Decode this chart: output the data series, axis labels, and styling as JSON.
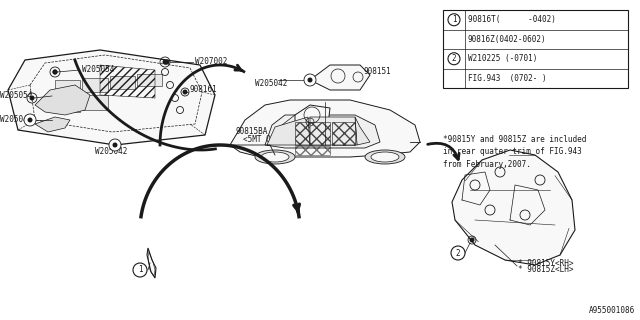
{
  "bg_color": "#ffffff",
  "line_color": "#1a1a1a",
  "diagram_number": "A955001086",
  "note_text": "*90815Y and 90815Z are included\nin rear quater trim of FIG.943\nfrom February,2007.",
  "table_rows": [
    {
      "circle": "1",
      "text": "90816T(      -0402)"
    },
    {
      "circle": "",
      "text": "90816Z(0402-0602)"
    },
    {
      "circle": "2",
      "text": "W210225 (-0701)"
    },
    {
      "circle": "",
      "text": "FIG.943  (0702- )"
    }
  ],
  "font_size": 5.5
}
